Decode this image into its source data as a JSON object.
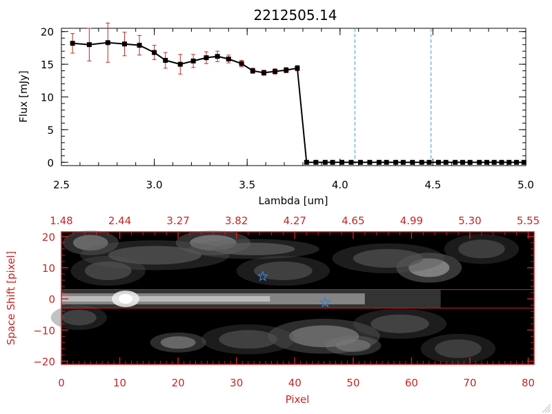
{
  "colors": {
    "axis_black": "#000000",
    "axis_red": "#cc2222",
    "errorbar": "#cc2222",
    "marker": "#000000",
    "vline": "#3a9bd0",
    "star": "#3a7fd0",
    "image_bg": "#000000"
  },
  "chart_data": [
    {
      "type": "line",
      "title": "2212505.14",
      "xlabel": "Lambda [um]",
      "ylabel": "Flux [mJy]",
      "xlim": [
        2.5,
        5.0
      ],
      "ylim": [
        -0.5,
        20.5
      ],
      "xticks": [
        2.5,
        3.0,
        3.5,
        4.0,
        4.5,
        5.0
      ],
      "xtick_labels": [
        "2.5",
        "3.0",
        "3.5",
        "4.0",
        "4.5",
        "5.0"
      ],
      "yticks": [
        0,
        5,
        10,
        15,
        20
      ],
      "ytick_labels": [
        "0",
        "5",
        "10",
        "15",
        "20"
      ],
      "vlines": [
        4.08,
        4.49
      ],
      "series": [
        {
          "name": "flux",
          "x": [
            2.56,
            2.65,
            2.75,
            2.84,
            2.92,
            3.0,
            3.06,
            3.14,
            3.21,
            3.28,
            3.34,
            3.4,
            3.47,
            3.53,
            3.59,
            3.65,
            3.71,
            3.77,
            3.82,
            3.87,
            3.92,
            3.96,
            4.01,
            4.06,
            4.11,
            4.16,
            4.21,
            4.25,
            4.3,
            4.34,
            4.39,
            4.44,
            4.48,
            4.53,
            4.57,
            4.62,
            4.66,
            4.7,
            4.75,
            4.79,
            4.83,
            4.87,
            4.91,
            4.95,
            4.99
          ],
          "y": [
            18.2,
            18.0,
            18.3,
            18.1,
            17.9,
            16.8,
            15.6,
            15.0,
            15.5,
            16.0,
            16.2,
            15.8,
            15.1,
            14.0,
            13.7,
            13.9,
            14.1,
            14.4,
            0,
            0,
            0,
            0,
            0,
            0,
            0,
            0,
            0,
            0,
            0,
            0,
            0,
            0,
            0,
            0,
            0,
            0,
            0,
            0,
            0,
            0,
            0,
            0,
            0,
            0,
            0
          ],
          "err": [
            1.5,
            2.5,
            3.0,
            1.8,
            1.5,
            1.1,
            1.2,
            1.5,
            1.0,
            0.9,
            0.8,
            0.6,
            0.5,
            0.4,
            0.4,
            0.4,
            0.4,
            0.4,
            0.2,
            0.2,
            0.2,
            0.2,
            0.2,
            0.2,
            0.2,
            0.2,
            0.2,
            0.2,
            0.2,
            0.2,
            0.2,
            0.2,
            0.2,
            0.2,
            0.2,
            0.2,
            0.2,
            0.2,
            0.2,
            0.2,
            0.2,
            0.2,
            0.2,
            0.2,
            0.2
          ]
        }
      ]
    },
    {
      "type": "heatmap",
      "xlabel": "Pixel",
      "ylabel": "Space Shift [pixel]",
      "xlim": [
        0,
        81
      ],
      "ylim": [
        -21,
        21.5
      ],
      "xticks": [
        0,
        10,
        20,
        30,
        40,
        50,
        60,
        70,
        80
      ],
      "xtick_labels": [
        "0",
        "10",
        "20",
        "30",
        "40",
        "50",
        "60",
        "70",
        "80"
      ],
      "yticks": [
        -20,
        -10,
        0,
        10,
        20
      ],
      "ytick_labels": [
        "−20",
        "−10",
        "0",
        "10",
        "20"
      ],
      "top_ticks": [
        0,
        10,
        20,
        30,
        40,
        50,
        60,
        70,
        80
      ],
      "top_tick_labels": [
        "1.48",
        "2.44",
        "3.27",
        "3.82",
        "4.27",
        "4.65",
        "4.99",
        "5.30",
        "5.55"
      ],
      "hlines": [
        3,
        -3
      ],
      "star_markers": [
        {
          "x": 34.5,
          "y": 7.2
        },
        {
          "x": 45.2,
          "y": -1.2
        }
      ],
      "trace": {
        "y": 0,
        "x_start": 0,
        "x_end": 65,
        "peak_x": 11
      },
      "blobs": [
        {
          "x": 5,
          "y": 18,
          "sx": 3,
          "sy": 2.5,
          "v": 0.35
        },
        {
          "x": 26,
          "y": 18,
          "sx": 4,
          "sy": 2.5,
          "v": 0.4
        },
        {
          "x": 33,
          "y": 16,
          "sx": 7,
          "sy": 2,
          "v": 0.18
        },
        {
          "x": 16,
          "y": 14,
          "sx": 8,
          "sy": 3,
          "v": 0.15
        },
        {
          "x": 63,
          "y": 10,
          "sx": 3.5,
          "sy": 3,
          "v": 0.5
        },
        {
          "x": 56,
          "y": 13,
          "sx": 6,
          "sy": 3,
          "v": 0.12
        },
        {
          "x": 38,
          "y": 9,
          "sx": 5,
          "sy": 3,
          "v": 0.1
        },
        {
          "x": 8,
          "y": 9,
          "sx": 4,
          "sy": 3,
          "v": 0.12
        },
        {
          "x": 20,
          "y": -14,
          "sx": 3,
          "sy": 2,
          "v": 0.35
        },
        {
          "x": 45,
          "y": -12,
          "sx": 6,
          "sy": 3.5,
          "v": 0.35
        },
        {
          "x": 50,
          "y": -15,
          "sx": 3,
          "sy": 2,
          "v": 0.3
        },
        {
          "x": 58,
          "y": -8,
          "sx": 5,
          "sy": 3,
          "v": 0.12
        },
        {
          "x": 32,
          "y": -13,
          "sx": 5,
          "sy": 3,
          "v": 0.1
        },
        {
          "x": 72,
          "y": 16,
          "sx": 4,
          "sy": 3,
          "v": 0.08
        },
        {
          "x": 68,
          "y": -16,
          "sx": 4,
          "sy": 3,
          "v": 0.08
        },
        {
          "x": 3,
          "y": -6,
          "sx": 3,
          "sy": 2.5,
          "v": 0.1
        }
      ]
    }
  ]
}
